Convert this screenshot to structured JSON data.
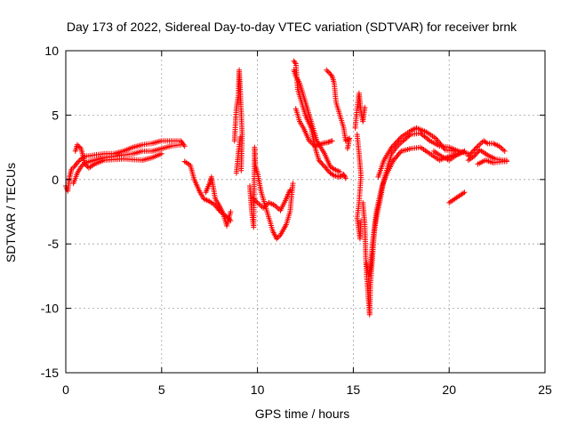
{
  "chart_data": {
    "type": "scatter",
    "title": "Day 173 of 2022, Sidereal Day-to-day VTEC variation (SDTVAR) for receiver brnk",
    "xlabel": "GPS time / hours",
    "ylabel": "SDTVAR / TECUs",
    "xlim": [
      0,
      25
    ],
    "ylim": [
      -15,
      10
    ],
    "xticks": [
      0,
      5,
      10,
      15,
      20,
      25
    ],
    "yticks": [
      -15,
      -10,
      -5,
      0,
      5,
      10
    ],
    "xtick_labels": [
      "0",
      "5",
      "10",
      "15",
      "20",
      "25"
    ],
    "ytick_labels": [
      "-15",
      "-10",
      "-5",
      "0",
      "5",
      "10"
    ],
    "grid": true,
    "marker": "+",
    "color": "#ff0000",
    "series": [
      {
        "name": "SDTVAR",
        "tracks": [
          [
            [
              0.0,
              -0.5
            ],
            [
              0.1,
              -0.9
            ],
            [
              0.2,
              0.2
            ],
            [
              0.3,
              0.8
            ],
            [
              0.45,
              1.0
            ],
            [
              0.6,
              1.3
            ],
            [
              0.8,
              1.6
            ],
            [
              1.0,
              1.8
            ],
            [
              1.5,
              1.9
            ],
            [
              2.0,
              2.0
            ],
            [
              2.5,
              2.0
            ],
            [
              3.0,
              2.2
            ],
            [
              3.5,
              2.5
            ],
            [
              4.0,
              2.7
            ],
            [
              4.5,
              2.8
            ],
            [
              5.0,
              3.0
            ],
            [
              5.5,
              3.0
            ],
            [
              6.0,
              3.0
            ],
            [
              6.2,
              2.6
            ]
          ],
          [
            [
              0.4,
              -0.3
            ],
            [
              0.6,
              0.5
            ],
            [
              0.8,
              1.0
            ],
            [
              1.0,
              1.3
            ],
            [
              1.5,
              1.5
            ],
            [
              2.0,
              1.7
            ],
            [
              2.5,
              1.8
            ],
            [
              3.0,
              1.9
            ],
            [
              3.5,
              2.0
            ],
            [
              4.0,
              2.2
            ],
            [
              4.5,
              2.2
            ],
            [
              5.0,
              2.4
            ],
            [
              5.5,
              2.6
            ],
            [
              6.0,
              2.7
            ]
          ],
          [
            [
              0.5,
              2.2
            ],
            [
              0.6,
              2.7
            ],
            [
              0.8,
              2.4
            ],
            [
              1.0,
              1.2
            ],
            [
              1.2,
              0.9
            ],
            [
              1.5,
              1.2
            ],
            [
              2.0,
              1.5
            ],
            [
              3.0,
              1.6
            ],
            [
              4.0,
              1.5
            ],
            [
              4.5,
              1.7
            ],
            [
              5.0,
              2.0
            ]
          ],
          [
            [
              6.2,
              1.4
            ],
            [
              6.5,
              1.1
            ],
            [
              6.7,
              0.0
            ],
            [
              7.0,
              -1.0
            ],
            [
              7.2,
              -1.5
            ],
            [
              7.5,
              -1.7
            ],
            [
              7.8,
              -2.0
            ],
            [
              8.0,
              -2.4
            ],
            [
              8.3,
              -2.8
            ],
            [
              8.5,
              -3.0
            ],
            [
              8.6,
              -3.2
            ]
          ],
          [
            [
              7.3,
              -1.0
            ],
            [
              7.5,
              -0.3
            ],
            [
              7.6,
              0.2
            ],
            [
              7.8,
              -1.5
            ],
            [
              8.0,
              -2.0
            ],
            [
              8.2,
              -2.6
            ],
            [
              8.4,
              -3.6
            ],
            [
              8.6,
              -2.5
            ]
          ],
          [
            [
              8.8,
              3.0
            ],
            [
              8.9,
              5.5
            ],
            [
              9.0,
              6.5
            ],
            [
              9.05,
              8.5
            ],
            [
              9.1,
              7.0
            ],
            [
              9.2,
              3.5
            ],
            [
              9.15,
              0.7
            ]
          ],
          [
            [
              8.9,
              0.5
            ],
            [
              9.0,
              2.0
            ],
            [
              9.1,
              3.3
            ]
          ],
          [
            [
              9.6,
              -0.5
            ],
            [
              9.7,
              -2.5
            ],
            [
              9.8,
              -3.7
            ],
            [
              9.85,
              2.5
            ],
            [
              9.9,
              1.0
            ],
            [
              10.0,
              0.5
            ],
            [
              10.2,
              -1.0
            ],
            [
              10.4,
              -2.0
            ],
            [
              10.6,
              -3.0
            ],
            [
              10.8,
              -4.0
            ],
            [
              11.0,
              -4.6
            ],
            [
              11.2,
              -4.3
            ],
            [
              11.5,
              -3.5
            ],
            [
              11.7,
              -2.5
            ],
            [
              11.8,
              -1.0
            ],
            [
              11.85,
              -0.3
            ]
          ],
          [
            [
              9.8,
              -1.5
            ],
            [
              10.0,
              -1.8
            ],
            [
              10.3,
              -2.2
            ],
            [
              10.6,
              -1.8
            ],
            [
              10.9,
              -2.0
            ],
            [
              11.2,
              -2.4
            ],
            [
              11.5,
              -1.5
            ],
            [
              11.7,
              -0.8
            ]
          ],
          [
            [
              11.9,
              9.2
            ],
            [
              12.0,
              9.0
            ],
            [
              12.1,
              7.0
            ],
            [
              12.3,
              6.0
            ],
            [
              12.5,
              5.0
            ],
            [
              12.8,
              4.0
            ],
            [
              13.0,
              2.5
            ],
            [
              13.2,
              1.5
            ],
            [
              13.5,
              1.0
            ],
            [
              13.8,
              0.5
            ],
            [
              14.0,
              0.3
            ],
            [
              14.3,
              0.2
            ],
            [
              14.5,
              0.4
            ],
            [
              14.6,
              0.1
            ]
          ],
          [
            [
              11.9,
              8.5
            ],
            [
              12.0,
              8.0
            ],
            [
              12.2,
              7.5
            ],
            [
              12.5,
              6.0
            ],
            [
              12.8,
              4.5
            ],
            [
              13.1,
              3.0
            ],
            [
              13.5,
              2.0
            ],
            [
              13.8,
              1.0
            ],
            [
              14.0,
              0.8
            ],
            [
              14.3,
              0.6
            ]
          ],
          [
            [
              12.0,
              5.5
            ],
            [
              12.2,
              4.5
            ],
            [
              12.4,
              4.0
            ],
            [
              12.7,
              3.0
            ],
            [
              13.0,
              2.6
            ],
            [
              13.4,
              2.8
            ],
            [
              13.7,
              2.9
            ],
            [
              13.9,
              3.0
            ]
          ],
          [
            [
              13.6,
              8.5
            ],
            [
              13.8,
              8.2
            ],
            [
              13.9,
              8.0
            ],
            [
              14.0,
              7.5
            ],
            [
              14.1,
              6.0
            ],
            [
              14.3,
              5.0
            ],
            [
              14.5,
              4.0
            ],
            [
              14.6,
              3.0
            ],
            [
              14.8,
              3.2
            ],
            [
              14.7,
              2.4
            ]
          ],
          [
            [
              15.1,
              4.0
            ],
            [
              15.2,
              5.5
            ],
            [
              15.3,
              6.7
            ],
            [
              15.4,
              5.3
            ],
            [
              15.5,
              4.5
            ],
            [
              15.6,
              5.6
            ]
          ],
          [
            [
              15.2,
              3.5
            ],
            [
              15.3,
              2.0
            ],
            [
              15.4,
              0.3
            ],
            [
              15.3,
              -1.8
            ],
            [
              15.2,
              -3.0
            ],
            [
              15.35,
              -4.6
            ],
            [
              15.4,
              -3.2
            ]
          ],
          [
            [
              15.5,
              -1.8
            ],
            [
              15.6,
              -3.5
            ],
            [
              15.65,
              -6.0
            ],
            [
              15.7,
              -7.5
            ],
            [
              15.8,
              -9.5
            ],
            [
              15.85,
              -10.5
            ],
            [
              15.9,
              -8.0
            ],
            [
              16.0,
              -6.0
            ],
            [
              16.1,
              -4.0
            ],
            [
              16.2,
              -3.0
            ],
            [
              16.4,
              -1.6
            ],
            [
              16.6,
              0.0
            ],
            [
              16.8,
              1.0
            ],
            [
              17.0,
              2.0
            ],
            [
              17.3,
              2.6
            ],
            [
              17.6,
              3.0
            ],
            [
              18.0,
              3.5
            ],
            [
              18.5,
              3.6
            ],
            [
              19.0,
              3.0
            ],
            [
              19.5,
              2.6
            ],
            [
              20.0,
              2.5
            ],
            [
              20.5,
              2.2
            ],
            [
              21.0,
              2.0
            ]
          ],
          [
            [
              15.7,
              -6.5
            ],
            [
              15.8,
              -7.5
            ],
            [
              15.9,
              -6.8
            ],
            [
              16.0,
              -5.0
            ],
            [
              16.2,
              -2.5
            ],
            [
              16.5,
              -0.5
            ],
            [
              16.8,
              0.6
            ],
            [
              17.1,
              1.5
            ],
            [
              17.5,
              2.2
            ],
            [
              18.0,
              2.4
            ],
            [
              18.5,
              2.5
            ],
            [
              19.0,
              2.0
            ],
            [
              19.5,
              1.5
            ],
            [
              20.0,
              1.8
            ],
            [
              20.5,
              2.0
            ],
            [
              20.8,
              2.2
            ]
          ],
          [
            [
              16.3,
              0.2
            ],
            [
              16.6,
              1.5
            ],
            [
              17.0,
              2.5
            ],
            [
              17.5,
              3.3
            ],
            [
              18.0,
              3.8
            ],
            [
              18.3,
              4.0
            ],
            [
              18.8,
              3.7
            ],
            [
              19.3,
              3.2
            ],
            [
              19.8,
              2.3
            ],
            [
              20.3,
              2.2
            ]
          ],
          [
            [
              19.2,
              2.2
            ],
            [
              19.6,
              1.8
            ],
            [
              20.0,
              1.5
            ],
            [
              20.4,
              1.9
            ],
            [
              20.8,
              2.2
            ]
          ],
          [
            [
              20.0,
              -1.8
            ],
            [
              20.3,
              -1.5
            ],
            [
              20.6,
              -1.2
            ],
            [
              20.8,
              -1.0
            ]
          ],
          [
            [
              21.0,
              1.8
            ],
            [
              21.5,
              2.6
            ],
            [
              21.8,
              3.0
            ],
            [
              22.0,
              2.8
            ],
            [
              22.3,
              2.8
            ],
            [
              22.6,
              2.6
            ],
            [
              22.9,
              2.2
            ]
          ],
          [
            [
              21.0,
              1.5
            ],
            [
              21.3,
              1.8
            ],
            [
              21.6,
              2.3
            ],
            [
              22.0,
              1.9
            ],
            [
              22.4,
              1.6
            ],
            [
              22.8,
              1.5
            ],
            [
              23.0,
              1.5
            ]
          ],
          [
            [
              21.5,
              1.2
            ],
            [
              21.9,
              1.5
            ],
            [
              22.3,
              1.3
            ],
            [
              22.8,
              1.4
            ],
            [
              23.0,
              1.4
            ]
          ]
        ]
      }
    ]
  }
}
